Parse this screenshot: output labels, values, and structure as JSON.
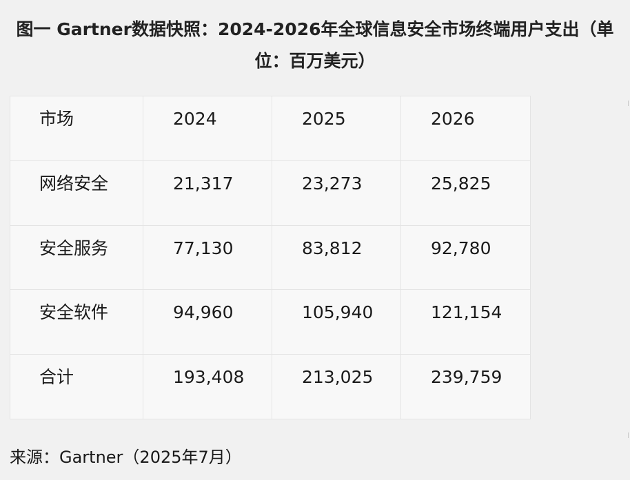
{
  "title": {
    "line1": "图一 Gartner数据快照：2024-2026年全球信息安全市场终端用户支出（单",
    "line2": "位：百万美元）"
  },
  "table": {
    "headers": [
      "市场",
      "2024",
      "2025",
      "2026"
    ],
    "rows": [
      [
        "网络安全",
        "21,317",
        "23,273",
        "25,825"
      ],
      [
        "安全服务",
        "77,130",
        "83,812",
        "92,780"
      ],
      [
        "安全软件",
        "94,960",
        "105,940",
        "121,154"
      ],
      [
        "合计",
        "193,408",
        "213,025",
        "239,759"
      ]
    ]
  },
  "source": "来源：Gartner（2025年7月）"
}
